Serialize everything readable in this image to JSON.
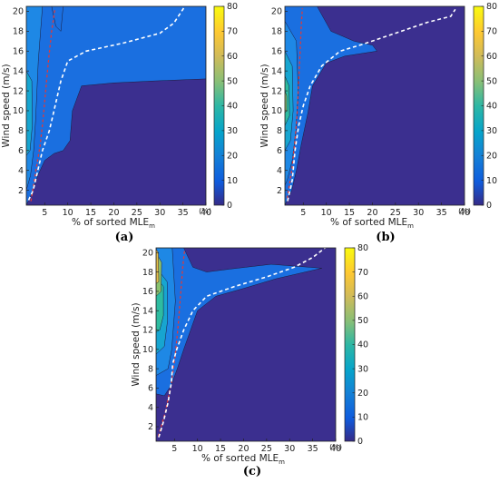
{
  "chart_data": [
    {
      "type": "heatmap",
      "panel": "a",
      "caption": "(a)",
      "xlabel": "% of sorted MLE",
      "xlabel_subscript": "m",
      "ylabel": "Wind speed (m/s)",
      "xlim": [
        1,
        40
      ],
      "ylim": [
        0.5,
        20.5
      ],
      "xticks": [
        "5",
        "10",
        "15",
        "20",
        "25",
        "30",
        "35",
        "40"
      ],
      "yticks": [
        "2",
        "4",
        "6",
        "8",
        "10",
        "12",
        "14",
        "16",
        "18",
        "20"
      ],
      "colorbar": {
        "min": 0,
        "max": 80,
        "ticks": [
          "0",
          "10",
          "20",
          "30",
          "40",
          "50",
          "60",
          "70",
          "80"
        ],
        "unit": "(%)"
      },
      "white_curve": [
        [
          1.5,
          1
        ],
        [
          2.5,
          2
        ],
        [
          3.5,
          4
        ],
        [
          4.5,
          6
        ],
        [
          6,
          8
        ],
        [
          7,
          10
        ],
        [
          8.5,
          13
        ],
        [
          10,
          15
        ],
        [
          14,
          16
        ],
        [
          22,
          16.8
        ],
        [
          30,
          17.8
        ],
        [
          33,
          18.8
        ],
        [
          35,
          20.2
        ],
        [
          36,
          21
        ]
      ],
      "red_curve": [
        [
          2,
          0.9
        ],
        [
          3,
          3.8
        ],
        [
          4,
          6.5
        ],
        [
          4.6,
          9
        ],
        [
          5.2,
          12
        ],
        [
          5.8,
          15
        ],
        [
          6.5,
          18
        ],
        [
          7.2,
          20.2
        ]
      ]
    },
    {
      "type": "heatmap",
      "panel": "b",
      "caption": "(b)",
      "xlabel": "% of sorted MLE",
      "xlabel_subscript": "m",
      "ylabel": "Wind speed (m/s)",
      "xlim": [
        1,
        40
      ],
      "ylim": [
        0.5,
        20.5
      ],
      "xticks": [
        "5",
        "10",
        "15",
        "20",
        "25",
        "30",
        "35",
        "40"
      ],
      "yticks": [
        "2",
        "4",
        "6",
        "8",
        "10",
        "12",
        "14",
        "16",
        "18",
        "20"
      ],
      "colorbar": {
        "min": 0,
        "max": 80,
        "ticks": [
          "0",
          "10",
          "20",
          "30",
          "40",
          "50",
          "60",
          "70",
          "80"
        ],
        "unit": "(%)"
      },
      "white_curve": [
        [
          1.6,
          0.9
        ],
        [
          2.6,
          3
        ],
        [
          3.2,
          6
        ],
        [
          4,
          8.5
        ],
        [
          5,
          10.5
        ],
        [
          6.5,
          12.5
        ],
        [
          9,
          14.5
        ],
        [
          13,
          16
        ],
        [
          18,
          16.7
        ],
        [
          25,
          17.8
        ],
        [
          32,
          18.9
        ],
        [
          37,
          19.5
        ],
        [
          38,
          20.2
        ]
      ],
      "red_curve": [
        [
          1.5,
          1.2
        ],
        [
          2.5,
          4
        ],
        [
          3.2,
          7
        ],
        [
          3.7,
          10
        ],
        [
          4,
          13
        ],
        [
          4.3,
          16
        ],
        [
          4.6,
          19
        ],
        [
          4.8,
          20.3
        ]
      ]
    },
    {
      "type": "heatmap",
      "panel": "c",
      "caption": "(c)",
      "xlabel": "% of sorted MLE",
      "xlabel_subscript": "m",
      "ylabel": "Wind speed (m/s)",
      "xlim": [
        1,
        40
      ],
      "ylim": [
        0.5,
        20.5
      ],
      "xticks": [
        "5",
        "10",
        "15",
        "20",
        "25",
        "30",
        "35",
        "40"
      ],
      "yticks": [
        "2",
        "4",
        "6",
        "8",
        "10",
        "12",
        "14",
        "16",
        "18",
        "20"
      ],
      "colorbar": {
        "min": 0,
        "max": 80,
        "ticks": [
          "0",
          "10",
          "20",
          "30",
          "40",
          "50",
          "60",
          "70",
          "80"
        ],
        "unit": "(%)"
      },
      "white_curve": [
        [
          1.6,
          0.9
        ],
        [
          2.6,
          2.5
        ],
        [
          3.6,
          4.5
        ],
        [
          4.3,
          6.5
        ],
        [
          4.6,
          8.5
        ],
        [
          5.5,
          10
        ],
        [
          7,
          12
        ],
        [
          9,
          14
        ],
        [
          12,
          15.5
        ],
        [
          18,
          16.5
        ],
        [
          25,
          17.5
        ],
        [
          31,
          18.5
        ],
        [
          35,
          19.5
        ],
        [
          38,
          20.6
        ]
      ],
      "red_curve": [
        [
          1.5,
          1
        ],
        [
          3,
          3.5
        ],
        [
          4.3,
          6.5
        ],
        [
          5.2,
          9.5
        ],
        [
          5.8,
          12.5
        ],
        [
          6.3,
          15.5
        ],
        [
          6.8,
          18.5
        ],
        [
          7.2,
          20.3
        ]
      ]
    }
  ]
}
